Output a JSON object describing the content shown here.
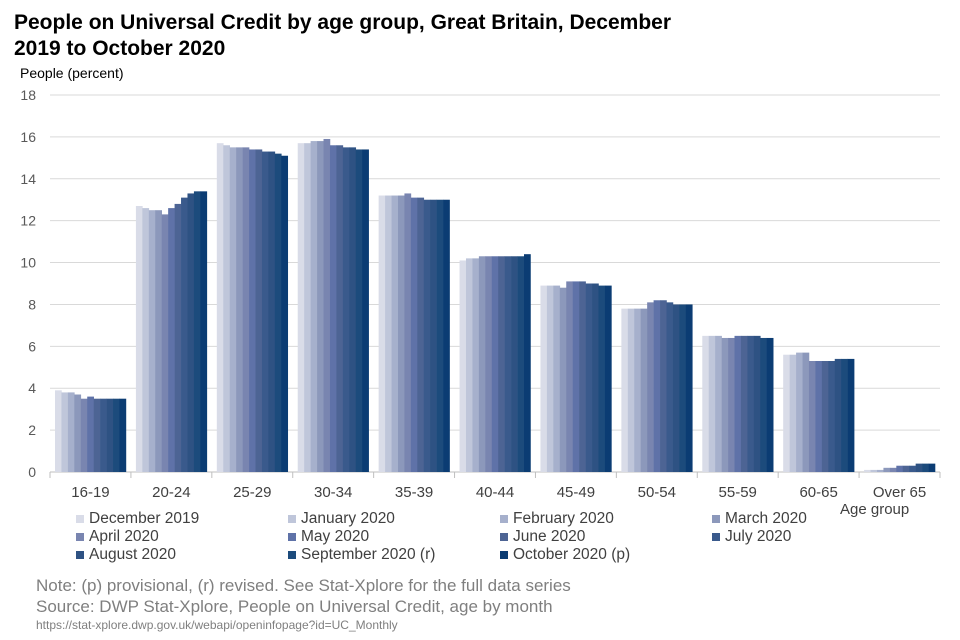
{
  "chart_data": {
    "type": "bar",
    "title": "People on Universal Credit by age group, Great Britain, December 2019 to October 2020",
    "ylabel": "People (percent)",
    "xlabel": "Age group",
    "ylim": [
      0,
      18
    ],
    "yticks": [
      "0",
      "2",
      "4",
      "6",
      "8",
      "10",
      "12",
      "14",
      "16",
      "18"
    ],
    "grid": true,
    "legend_position": "bottom",
    "categories": [
      "16-19",
      "20-24",
      "25-29",
      "30-34",
      "35-39",
      "40-44",
      "45-49",
      "50-54",
      "55-59",
      "60-65",
      "Over 65"
    ],
    "series": [
      {
        "name": "December 2019",
        "color": "#d9dce8",
        "values": [
          3.9,
          12.7,
          15.7,
          15.7,
          13.2,
          10.1,
          8.9,
          7.8,
          6.5,
          5.6,
          0.1
        ]
      },
      {
        "name": "January 2020",
        "color": "#bfc6da",
        "values": [
          3.8,
          12.6,
          15.6,
          15.7,
          13.2,
          10.2,
          8.9,
          7.8,
          6.5,
          5.6,
          0.1
        ]
      },
      {
        "name": "February 2020",
        "color": "#a6b0cc",
        "values": [
          3.8,
          12.5,
          15.5,
          15.8,
          13.2,
          10.2,
          8.9,
          7.8,
          6.5,
          5.7,
          0.1
        ]
      },
      {
        "name": "March 2020",
        "color": "#8c98bb",
        "values": [
          3.7,
          12.5,
          15.5,
          15.8,
          13.2,
          10.3,
          8.8,
          7.8,
          6.4,
          5.7,
          0.2
        ]
      },
      {
        "name": "April 2020",
        "color": "#7985b0",
        "values": [
          3.5,
          12.3,
          15.5,
          15.9,
          13.3,
          10.3,
          9.1,
          8.1,
          6.4,
          5.3,
          0.2
        ]
      },
      {
        "name": "May 2020",
        "color": "#5f72a8",
        "values": [
          3.6,
          12.6,
          15.4,
          15.6,
          13.1,
          10.3,
          9.1,
          8.2,
          6.5,
          5.3,
          0.3
        ]
      },
      {
        "name": "June 2020",
        "color": "#4d6494",
        "values": [
          3.5,
          12.8,
          15.4,
          15.6,
          13.1,
          10.3,
          9.1,
          8.2,
          6.5,
          5.3,
          0.3
        ]
      },
      {
        "name": "July 2020",
        "color": "#3a5a8c",
        "values": [
          3.5,
          13.1,
          15.3,
          15.5,
          13.0,
          10.3,
          9.0,
          8.1,
          6.5,
          5.3,
          0.3
        ]
      },
      {
        "name": "August 2020",
        "color": "#2e5283",
        "values": [
          3.5,
          13.3,
          15.3,
          15.5,
          13.0,
          10.3,
          9.0,
          8.0,
          6.5,
          5.4,
          0.4
        ]
      },
      {
        "name": "September 2020 (r)",
        "color": "#1c4b7c",
        "values": [
          3.5,
          13.4,
          15.2,
          15.4,
          13.0,
          10.3,
          8.9,
          8.0,
          6.4,
          5.4,
          0.4
        ]
      },
      {
        "name": "October 2020 (p)",
        "color": "#0b3c73",
        "values": [
          3.5,
          13.4,
          15.1,
          15.4,
          13.0,
          10.4,
          8.9,
          8.0,
          6.4,
          5.4,
          0.4
        ]
      }
    ]
  },
  "note": "Note: (p) provisional, (r) revised. See Stat-Xplore for the full data series",
  "source": "Source: DWP Stat-Xplore, People on Universal Credit, age by month",
  "url": "https://stat-xplore.dwp.gov.uk/webapi/openinfopage?id=UC_Monthly"
}
